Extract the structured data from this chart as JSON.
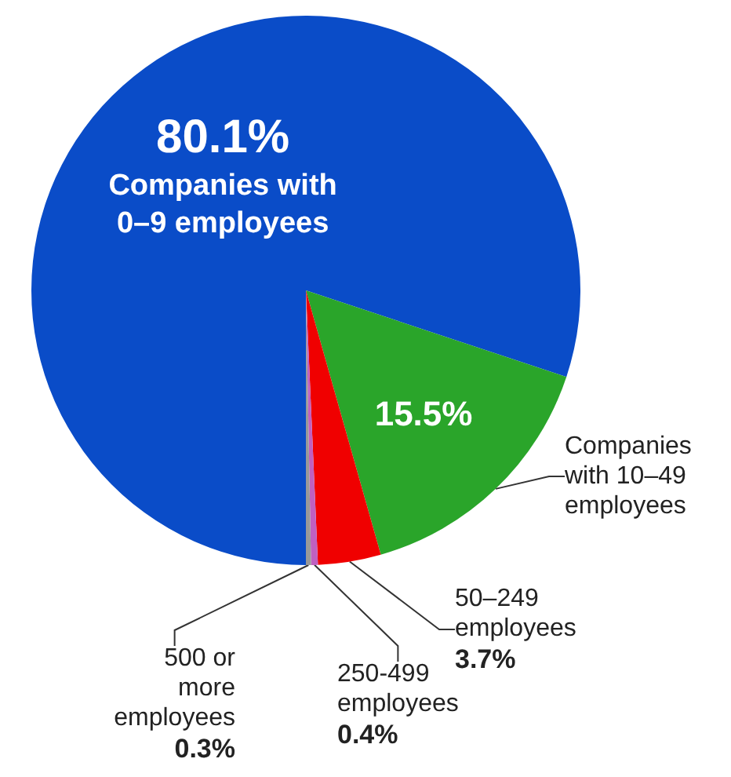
{
  "chart_data": {
    "type": "pie",
    "categories": [
      "Companies with 0–9 employees",
      "Companies with 10–49 employees",
      "50–249 employees",
      "250-499 employees",
      "500 or more employees"
    ],
    "values": [
      80.1,
      15.5,
      3.7,
      0.4,
      0.3
    ],
    "colors": [
      "#0a4cc8",
      "#2aa52a",
      "#f00000",
      "#c060c0",
      "#999999"
    ],
    "value_labels": [
      "80.1%",
      "15.5%",
      "3.7%",
      "0.4%",
      "0.3%"
    ]
  }
}
